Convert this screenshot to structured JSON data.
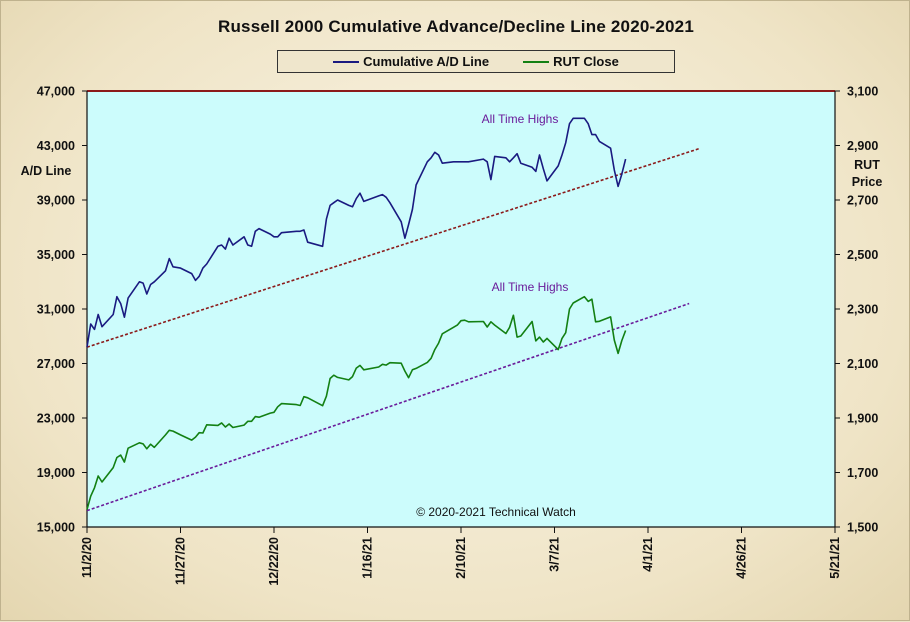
{
  "chart_data": {
    "type": "line",
    "title": "Russell 2000 Cumulative Advance/Decline Line 2020-2021",
    "legend": [
      {
        "name": "Cumulative A/D Line",
        "color": "#1a1a80"
      },
      {
        "name": "RUT Close",
        "color": "#138013"
      }
    ],
    "legend_position": "top-center",
    "y_left": {
      "label": "A/D Line",
      "ylim": [
        15000,
        47000
      ],
      "ticks": [
        "47,000",
        "43,000",
        "39,000",
        "35,000",
        "31,000",
        "27,000",
        "23,000",
        "19,000",
        "15,000"
      ]
    },
    "y_right": {
      "label": "RUT Price",
      "ylim": [
        1500,
        3100
      ],
      "ticks": [
        "3,100",
        "2,900",
        "2,700",
        "2,500",
        "2,300",
        "2,100",
        "1,900",
        "1,700",
        "1,500"
      ]
    },
    "x": {
      "ticks": [
        "11/2/20",
        "11/27/20",
        "12/22/20",
        "1/16/21",
        "2/10/21",
        "3/7/21",
        "4/1/21",
        "4/26/21",
        "5/21/21"
      ],
      "xlim": [
        "11/2/20",
        "5/21/21"
      ]
    },
    "series": [
      {
        "name": "Cumulative A/D Line",
        "color": "#1a1a80",
        "axis": "left",
        "x": [
          "11/2/20",
          "11/3/20",
          "11/4/20",
          "11/5/20",
          "11/6/20",
          "11/9/20",
          "11/10/20",
          "11/11/20",
          "11/12/20",
          "11/13/20",
          "11/16/20",
          "11/17/20",
          "11/18/20",
          "11/19/20",
          "11/20/20",
          "11/23/20",
          "11/24/20",
          "11/25/20",
          "11/27/20",
          "11/30/20",
          "12/1/20",
          "12/2/20",
          "12/3/20",
          "12/4/20",
          "12/7/20",
          "12/8/20",
          "12/9/20",
          "12/10/20",
          "12/11/20",
          "12/14/20",
          "12/15/20",
          "12/16/20",
          "12/17/20",
          "12/18/20",
          "12/21/20",
          "12/22/20",
          "12/23/20",
          "12/24/20",
          "12/28/20",
          "12/29/20",
          "12/30/20",
          "12/31/20",
          "1/4/21",
          "1/5/21",
          "1/6/21",
          "1/7/21",
          "1/8/21",
          "1/11/21",
          "1/12/21",
          "1/13/21",
          "1/14/21",
          "1/15/21",
          "1/19/21",
          "1/20/21",
          "1/21/21",
          "1/22/21",
          "1/25/21",
          "1/26/21",
          "1/27/21",
          "1/28/21",
          "1/29/21",
          "2/1/21",
          "2/2/21",
          "2/3/21",
          "2/4/21",
          "2/5/21",
          "2/8/21",
          "2/9/21",
          "2/10/21",
          "2/11/21",
          "2/12/21",
          "2/16/21",
          "2/17/21",
          "2/18/21",
          "2/19/21",
          "2/22/21",
          "2/23/21",
          "2/24/21",
          "2/25/21",
          "2/26/21",
          "3/1/21",
          "3/2/21",
          "3/3/21",
          "3/4/21",
          "3/5/21",
          "3/8/21",
          "3/9/21",
          "3/10/21",
          "3/11/21",
          "3/12/21",
          "3/15/21",
          "3/16/21",
          "3/17/21",
          "3/18/21",
          "3/19/21",
          "3/22/21",
          "3/23/21",
          "3/24/21",
          "3/25/21",
          "3/26/21"
        ],
        "values": [
          28200,
          29900,
          29500,
          30600,
          29700,
          30600,
          31900,
          31400,
          30400,
          31800,
          33000,
          32900,
          32100,
          32800,
          33000,
          33800,
          34700,
          34100,
          34000,
          33600,
          33100,
          33400,
          34000,
          34300,
          35600,
          35700,
          35400,
          36200,
          35700,
          36300,
          35700,
          35600,
          36700,
          36900,
          36500,
          36300,
          36300,
          36600,
          36700,
          36700,
          36800,
          35900,
          35600,
          37600,
          38600,
          38800,
          39000,
          38600,
          38500,
          39100,
          39500,
          38900,
          39300,
          39400,
          39200,
          38800,
          37400,
          36200,
          37200,
          38300,
          40100,
          41800,
          42100,
          42500,
          42300,
          41700,
          41800,
          41800,
          41800,
          41800,
          41800,
          42000,
          41800,
          40500,
          42200,
          42100,
          41800,
          42100,
          42400,
          41700,
          41400,
          41100,
          42300,
          41300,
          40400,
          41500,
          42300,
          43200,
          44600,
          45000,
          45000,
          44600,
          43800,
          43800,
          43300,
          42800,
          41200,
          40000,
          40900,
          42000
        ]
      },
      {
        "name": "RUT Close",
        "color": "#138013",
        "axis": "right",
        "x": [
          "11/2/20",
          "11/3/20",
          "11/4/20",
          "11/5/20",
          "11/6/20",
          "11/9/20",
          "11/10/20",
          "11/11/20",
          "11/12/20",
          "11/13/20",
          "11/16/20",
          "11/17/20",
          "11/18/20",
          "11/19/20",
          "11/20/20",
          "11/23/20",
          "11/24/20",
          "11/25/20",
          "11/27/20",
          "11/30/20",
          "12/1/20",
          "12/2/20",
          "12/3/20",
          "12/4/20",
          "12/7/20",
          "12/8/20",
          "12/9/20",
          "12/10/20",
          "12/11/20",
          "12/14/20",
          "12/15/20",
          "12/16/20",
          "12/17/20",
          "12/18/20",
          "12/21/20",
          "12/22/20",
          "12/23/20",
          "12/24/20",
          "12/28/20",
          "12/29/20",
          "12/30/20",
          "12/31/20",
          "1/4/21",
          "1/5/21",
          "1/6/21",
          "1/7/21",
          "1/8/21",
          "1/11/21",
          "1/12/21",
          "1/13/21",
          "1/14/21",
          "1/15/21",
          "1/19/21",
          "1/20/21",
          "1/21/21",
          "1/22/21",
          "1/25/21",
          "1/26/21",
          "1/27/21",
          "1/28/21",
          "1/29/21",
          "2/1/21",
          "2/2/21",
          "2/3/21",
          "2/4/21",
          "2/5/21",
          "2/8/21",
          "2/9/21",
          "2/10/21",
          "2/11/21",
          "2/12/21",
          "2/16/21",
          "2/17/21",
          "2/18/21",
          "2/19/21",
          "2/22/21",
          "2/23/21",
          "2/24/21",
          "2/25/21",
          "2/26/21",
          "3/1/21",
          "3/2/21",
          "3/3/21",
          "3/4/21",
          "3/5/21",
          "3/8/21",
          "3/9/21",
          "3/10/21",
          "3/11/21",
          "3/12/21",
          "3/15/21",
          "3/16/21",
          "3/17/21",
          "3/18/21",
          "3/19/21",
          "3/22/21",
          "3/23/21",
          "3/24/21",
          "3/25/21",
          "3/26/21"
        ],
        "values": [
          1564,
          1613,
          1644,
          1687,
          1665,
          1718,
          1755,
          1764,
          1738,
          1789,
          1809,
          1805,
          1787,
          1804,
          1792,
          1838,
          1855,
          1852,
          1838,
          1819,
          1830,
          1846,
          1845,
          1875,
          1873,
          1882,
          1867,
          1878,
          1865,
          1874,
          1888,
          1888,
          1905,
          1903,
          1918,
          1921,
          1941,
          1953,
          1949,
          1946,
          1978,
          1974,
          1945,
          1980,
          2045,
          2057,
          2049,
          2040,
          2052,
          2083,
          2093,
          2077,
          2087,
          2097,
          2094,
          2103,
          2101,
          2072,
          2048,
          2077,
          2082,
          2104,
          2119,
          2151,
          2175,
          2209,
          2233,
          2241,
          2257,
          2259,
          2253,
          2254,
          2234,
          2253,
          2241,
          2210,
          2233,
          2277,
          2197,
          2201,
          2254,
          2183,
          2197,
          2179,
          2192,
          2151,
          2192,
          2213,
          2300,
          2322,
          2345,
          2328,
          2336,
          2253,
          2255,
          2271,
          2186,
          2137,
          2184,
          2221
        ]
      }
    ],
    "trendlines": [
      {
        "axis": "left",
        "from": {
          "x": "11/2/20",
          "y": 28200
        },
        "to": {
          "x": "4/15/21",
          "y": 42800
        },
        "color": "#8b1a1a",
        "style": "dashed"
      },
      {
        "axis": "right",
        "from": {
          "x": "11/2/20",
          "y": 1560
        },
        "to": {
          "x": "4/12/21",
          "y": 2320
        },
        "color": "#6a1b9a",
        "style": "dashed"
      }
    ],
    "annotations": [
      {
        "text": "All Time Highs",
        "near": "Cumulative A/D Line peak"
      },
      {
        "text": "All Time Highs",
        "near": "RUT Close peak"
      },
      {
        "text": "© 2020-2021  Technical Watch",
        "near": "bottom-center"
      }
    ],
    "grid": false,
    "plot_background": "#ccfcfc"
  }
}
